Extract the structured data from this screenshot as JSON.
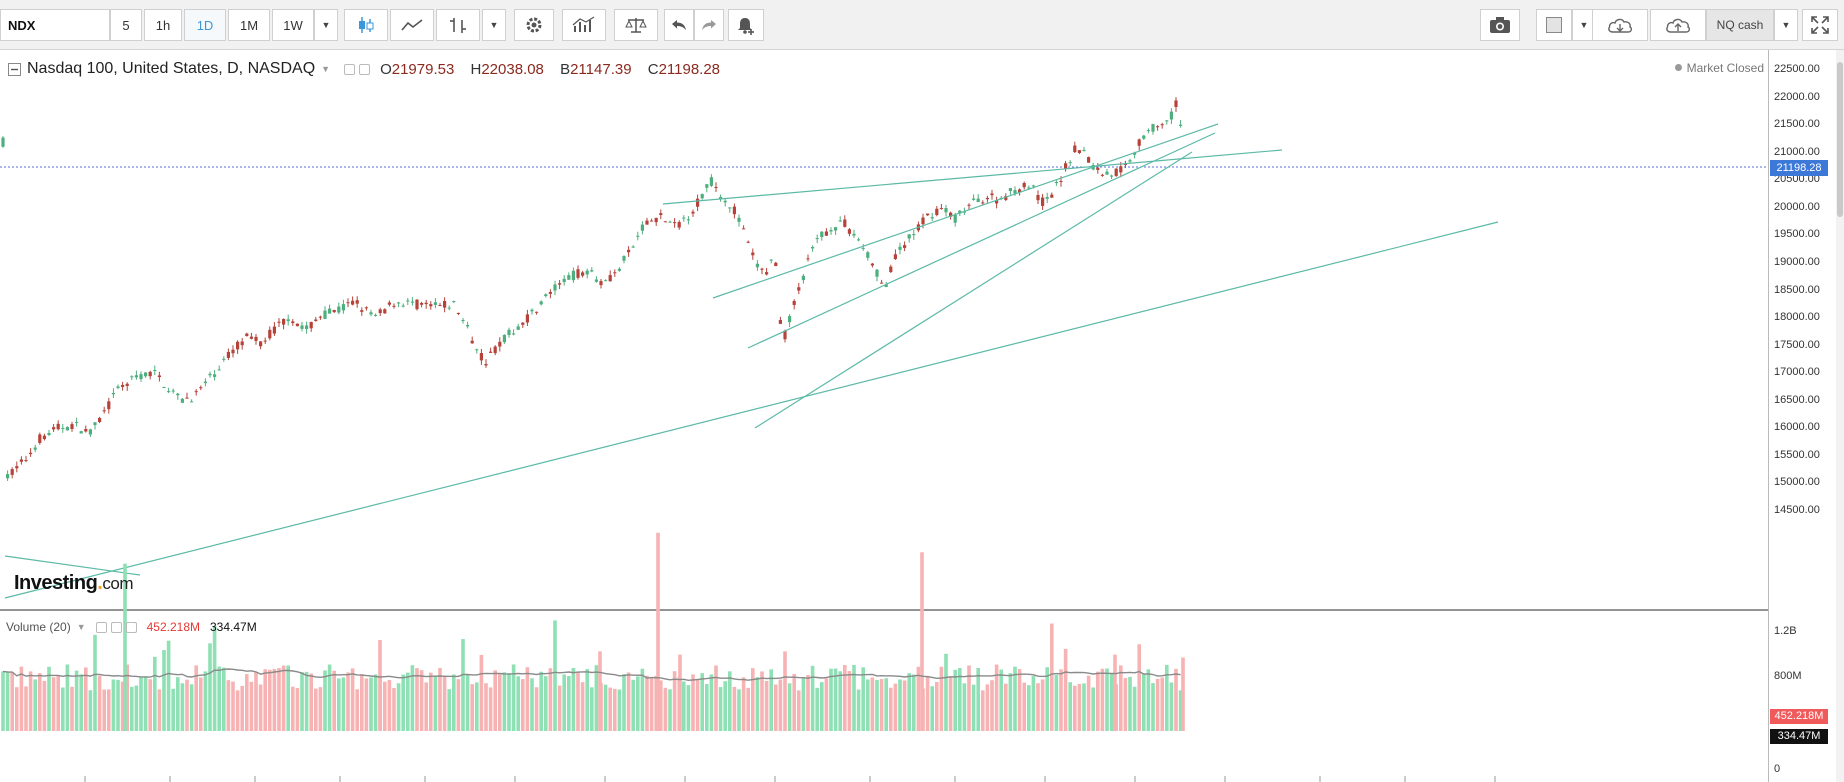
{
  "toolbar": {
    "symbol": "NDX",
    "intervals": [
      "5",
      "1h",
      "1D",
      "1M",
      "1W"
    ],
    "active_interval": "1D",
    "contract": "NQ cash"
  },
  "legend": {
    "title": "Nasdaq 100, United States, D, NASDAQ",
    "open_key": "O",
    "open": "21979.53",
    "high_key": "H",
    "high": "22038.08",
    "low_key": "B",
    "low": "21147.39",
    "close_key": "C",
    "close": "21198.28"
  },
  "market_status": "Market Closed",
  "price_axis": {
    "labels": [
      "22500.00",
      "22000.00",
      "21500.00",
      "21000.00",
      "20500.00",
      "20000.00",
      "19500.00",
      "19000.00",
      "18500.00",
      "18000.00",
      "17500.00",
      "17000.00",
      "16500.00",
      "16000.00",
      "15500.00",
      "15000.00",
      "14500.00"
    ],
    "current": "21198.28"
  },
  "volume": {
    "label": "Volume (20)",
    "value": "452.218M",
    "average": "334.47M",
    "axis_labels": [
      "1.2B",
      "800M",
      "0"
    ]
  },
  "branding": {
    "name": "Investing",
    "suffix": "com"
  },
  "chart_data": {
    "type": "candlestick",
    "last_close": 21198.28,
    "y_range": [
      14400,
      22700
    ],
    "colors": {
      "up": "#4caf7d",
      "down": "#b5433a",
      "trendline": "#5bb9a6",
      "volume_up": "#8fe0b4",
      "volume_down": "#f7b3b3",
      "volume_ma": "#888888",
      "last_price": "#3c78d8"
    }
  }
}
